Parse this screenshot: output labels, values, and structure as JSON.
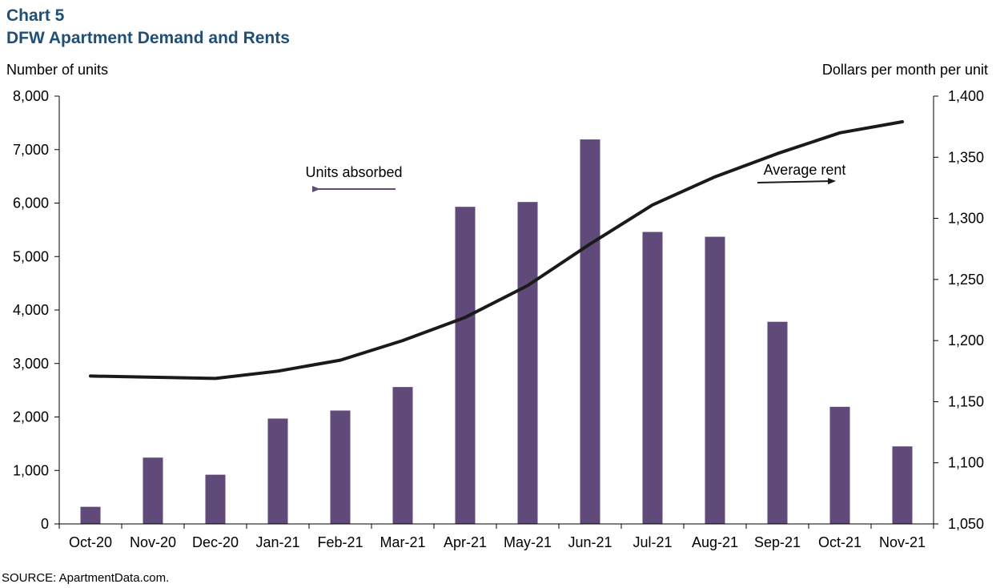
{
  "header": {
    "chart_label": "Chart 5",
    "title": "DFW Apartment Demand and Rents"
  },
  "source": "SOURCE:  ApartmentData.com.",
  "colors": {
    "bars": "#5f4a7a",
    "line": "#1a1a1a",
    "title": "#1f4e79"
  },
  "chart_data": {
    "type": "bar",
    "categories": [
      "Oct-20",
      "Nov-20",
      "Dec-20",
      "Jan-21",
      "Feb-21",
      "Mar-21",
      "Apr-21",
      "May-21",
      "Jun-21",
      "Jul-21",
      "Aug-21",
      "Sep-21",
      "Oct-21",
      "Nov-21"
    ],
    "ylabel_left": "Number  of units",
    "ylabel_right": "Dollars per month per unit",
    "ylim_left": [
      0,
      8000
    ],
    "ylim_right": [
      1050,
      1400
    ],
    "yticks_left": [
      "0",
      "1,000",
      "2,000",
      "3,000",
      "4,000",
      "5,000",
      "6,000",
      "7,000",
      "8,000"
    ],
    "yticks_right": [
      "1,050",
      "1,100",
      "1,150",
      "1,200",
      "1,250",
      "1,300",
      "1,350",
      "1,400"
    ],
    "grid": false,
    "series": [
      {
        "name": "Units absorbed",
        "type": "bar",
        "axis": "left",
        "values": [
          320,
          1240,
          920,
          1970,
          2120,
          2560,
          5930,
          6020,
          7190,
          5460,
          5370,
          3780,
          2190,
          1450
        ]
      },
      {
        "name": "Average rent",
        "type": "line",
        "axis": "right",
        "values": [
          1171,
          1170,
          1169,
          1175,
          1184,
          1200,
          1219,
          1245,
          1279,
          1311,
          1334,
          1353,
          1370,
          1379
        ]
      }
    ],
    "annotations": [
      {
        "text": "Units absorbed",
        "arrow": "left"
      },
      {
        "text": "Average rent",
        "arrow": "right"
      }
    ]
  }
}
